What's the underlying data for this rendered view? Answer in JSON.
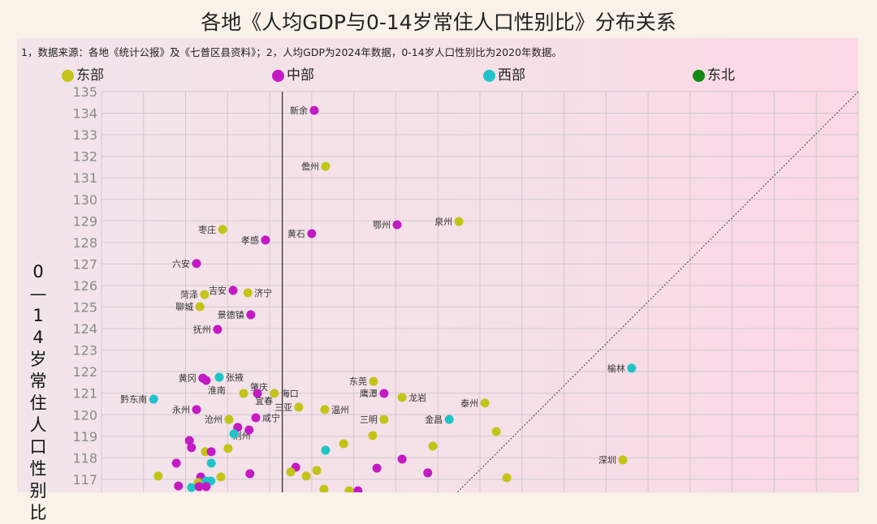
{
  "title": "各地《人均GDP与0-14岁常住人口性别比》分布关系",
  "note": "1，数据来源：各地《统计公报》及《七普区县资料》；2，人均GDP为2024年数据，0-14岁人口性别比为2020年数据。",
  "colors": {
    "东部": "#c2c417",
    "中部": "#c31ac3",
    "西部": "#1fc4c8",
    "东北": "#148a14"
  },
  "chart_data": {
    "type": "scatter",
    "title": "各地《人均GDP与0-14岁常住人口性别比》分布关系",
    "xlabel": "",
    "ylabel": "0—14岁常住人口性别比",
    "x_units": "grid columns (x axis not labeled in the visible area)",
    "xlim": [
      0,
      18
    ],
    "ylim": [
      116.3,
      135
    ],
    "yticks": [
      135,
      134,
      133,
      132,
      131,
      130,
      129,
      128,
      127,
      126,
      125,
      124,
      123,
      122,
      121,
      120,
      119,
      118,
      117
    ],
    "grid": true,
    "legend": {
      "placement": "top",
      "entries": [
        "东部",
        "中部",
        "西部",
        "东北"
      ]
    },
    "reference_lines": [
      {
        "type": "vertical",
        "style": "solid",
        "x": 4.3
      },
      {
        "type": "diagonal",
        "style": "dotted",
        "from": [
          18,
          135
        ],
        "to": [
          8.46,
          116.39
        ]
      }
    ],
    "points": [
      {
        "name": "新余",
        "region": "中部",
        "x": 5.06,
        "y": 134.13
      },
      {
        "name": "儋州",
        "region": "东部",
        "x": 5.33,
        "y": 131.53
      },
      {
        "name": "黄石",
        "region": "中部",
        "x": 5.0,
        "y": 128.41
      },
      {
        "name": "鄂州",
        "region": "中部",
        "x": 7.03,
        "y": 128.82
      },
      {
        "name": "泉州",
        "region": "东部",
        "x": 8.5,
        "y": 128.97
      },
      {
        "name": "枣庄",
        "region": "东部",
        "x": 2.88,
        "y": 128.6
      },
      {
        "name": "孝感",
        "region": "中部",
        "x": 3.9,
        "y": 128.11
      },
      {
        "name": "六安",
        "region": "中部",
        "x": 2.26,
        "y": 127.02
      },
      {
        "name": "吉安",
        "region": "中部",
        "x": 3.13,
        "y": 125.77
      },
      {
        "name": "济宁",
        "region": "东部",
        "x": 3.48,
        "y": 125.66
      },
      {
        "name": "菏泽",
        "region": "东部",
        "x": 2.45,
        "y": 125.58
      },
      {
        "name": "聊城",
        "region": "东部",
        "x": 2.34,
        "y": 125.02
      },
      {
        "name": "景德镇",
        "region": "中部",
        "x": 3.55,
        "y": 124.64
      },
      {
        "name": "抚州",
        "region": "中部",
        "x": 2.76,
        "y": 123.96
      },
      {
        "name": "黄冈",
        "region": "中部",
        "x": 2.41,
        "y": 121.7
      },
      {
        "name": "淮南",
        "region": "中部",
        "x": 2.49,
        "y": 121.59
      },
      {
        "name": "张掖",
        "region": "西部",
        "x": 2.8,
        "y": 121.74
      },
      {
        "name": "黔东南",
        "region": "西部",
        "x": 1.24,
        "y": 120.72
      },
      {
        "name": "肇庆",
        "region": "东部",
        "x": 3.38,
        "y": 120.99
      },
      {
        "name": "宜春",
        "region": "中部",
        "x": 3.71,
        "y": 120.99
      },
      {
        "name": "海口",
        "region": "东部",
        "x": 4.11,
        "y": 120.99
      },
      {
        "name": "三亚",
        "region": "东部",
        "x": 4.69,
        "y": 120.35
      },
      {
        "name": "温州",
        "region": "东部",
        "x": 5.31,
        "y": 120.24
      },
      {
        "name": "永州",
        "region": "中部",
        "x": 2.26,
        "y": 120.24
      },
      {
        "name": "沧州",
        "region": "东部",
        "x": 3.03,
        "y": 119.78
      },
      {
        "name": "咸宁",
        "region": "中部",
        "x": 3.67,
        "y": 119.86
      },
      {
        "name": "荆州",
        "region": "中部",
        "x": 3.24,
        "y": 119.41
      },
      {
        "name": "东莞",
        "region": "东部",
        "x": 6.47,
        "y": 121.55
      },
      {
        "name": "鹰潭",
        "region": "中部",
        "x": 6.72,
        "y": 120.99
      },
      {
        "name": "龙岩",
        "region": "东部",
        "x": 7.15,
        "y": 120.8
      },
      {
        "name": "三明",
        "region": "东部",
        "x": 6.72,
        "y": 119.78
      },
      {
        "name": "泰州",
        "region": "东部",
        "x": 9.12,
        "y": 120.54
      },
      {
        "name": "金昌",
        "region": "西部",
        "x": 8.27,
        "y": 119.78
      },
      {
        "name": "榆林",
        "region": "西部",
        "x": 12.61,
        "y": 122.16
      },
      {
        "name": "深圳",
        "region": "东部",
        "x": 12.4,
        "y": 117.9
      },
      {
        "name": "",
        "region": "西部",
        "x": 3.15,
        "y": 119.11
      },
      {
        "name": "",
        "region": "中部",
        "x": 3.51,
        "y": 119.29
      },
      {
        "name": "",
        "region": "中部",
        "x": 2.09,
        "y": 118.8
      },
      {
        "name": "",
        "region": "中部",
        "x": 2.14,
        "y": 118.47
      },
      {
        "name": "",
        "region": "东部",
        "x": 2.47,
        "y": 118.28
      },
      {
        "name": "",
        "region": "中部",
        "x": 2.61,
        "y": 118.28
      },
      {
        "name": "",
        "region": "东部",
        "x": 3.01,
        "y": 118.43
      },
      {
        "name": "",
        "region": "西部",
        "x": 2.61,
        "y": 117.75
      },
      {
        "name": "",
        "region": "中部",
        "x": 1.78,
        "y": 117.75
      },
      {
        "name": "",
        "region": "东部",
        "x": 1.35,
        "y": 117.15
      },
      {
        "name": "",
        "region": "中部",
        "x": 2.36,
        "y": 117.11
      },
      {
        "name": "",
        "region": "东部",
        "x": 2.3,
        "y": 116.85
      },
      {
        "name": "",
        "region": "西部",
        "x": 2.49,
        "y": 116.92
      },
      {
        "name": "",
        "region": "西部",
        "x": 2.6,
        "y": 116.92
      },
      {
        "name": "",
        "region": "中部",
        "x": 1.83,
        "y": 116.69
      },
      {
        "name": "",
        "region": "西部",
        "x": 2.14,
        "y": 116.62
      },
      {
        "name": "",
        "region": "中部",
        "x": 2.32,
        "y": 116.66
      },
      {
        "name": "",
        "region": "中部",
        "x": 2.49,
        "y": 116.66
      },
      {
        "name": "",
        "region": "东部",
        "x": 2.84,
        "y": 117.11
      },
      {
        "name": "",
        "region": "中部",
        "x": 3.53,
        "y": 117.26
      },
      {
        "name": "",
        "region": "中部",
        "x": 4.62,
        "y": 117.56
      },
      {
        "name": "",
        "region": "东部",
        "x": 4.5,
        "y": 117.34
      },
      {
        "name": "",
        "region": "东部",
        "x": 4.87,
        "y": 117.15
      },
      {
        "name": "",
        "region": "东部",
        "x": 5.12,
        "y": 117.41
      },
      {
        "name": "",
        "region": "西部",
        "x": 5.33,
        "y": 118.35
      },
      {
        "name": "",
        "region": "东部",
        "x": 5.76,
        "y": 118.65
      },
      {
        "name": "",
        "region": "东部",
        "x": 6.45,
        "y": 119.03
      },
      {
        "name": "",
        "region": "东部",
        "x": 7.88,
        "y": 118.54
      },
      {
        "name": "",
        "region": "中部",
        "x": 7.15,
        "y": 117.94
      },
      {
        "name": "",
        "region": "中部",
        "x": 6.55,
        "y": 117.52
      },
      {
        "name": "",
        "region": "中部",
        "x": 7.76,
        "y": 117.3
      },
      {
        "name": "",
        "region": "东部",
        "x": 9.39,
        "y": 119.22
      },
      {
        "name": "",
        "region": "东部",
        "x": 9.64,
        "y": 117.07
      },
      {
        "name": "",
        "region": "东部",
        "x": 5.29,
        "y": 116.54
      },
      {
        "name": "",
        "region": "东部",
        "x": 5.89,
        "y": 116.47
      },
      {
        "name": "",
        "region": "中部",
        "x": 6.1,
        "y": 116.47
      }
    ]
  }
}
